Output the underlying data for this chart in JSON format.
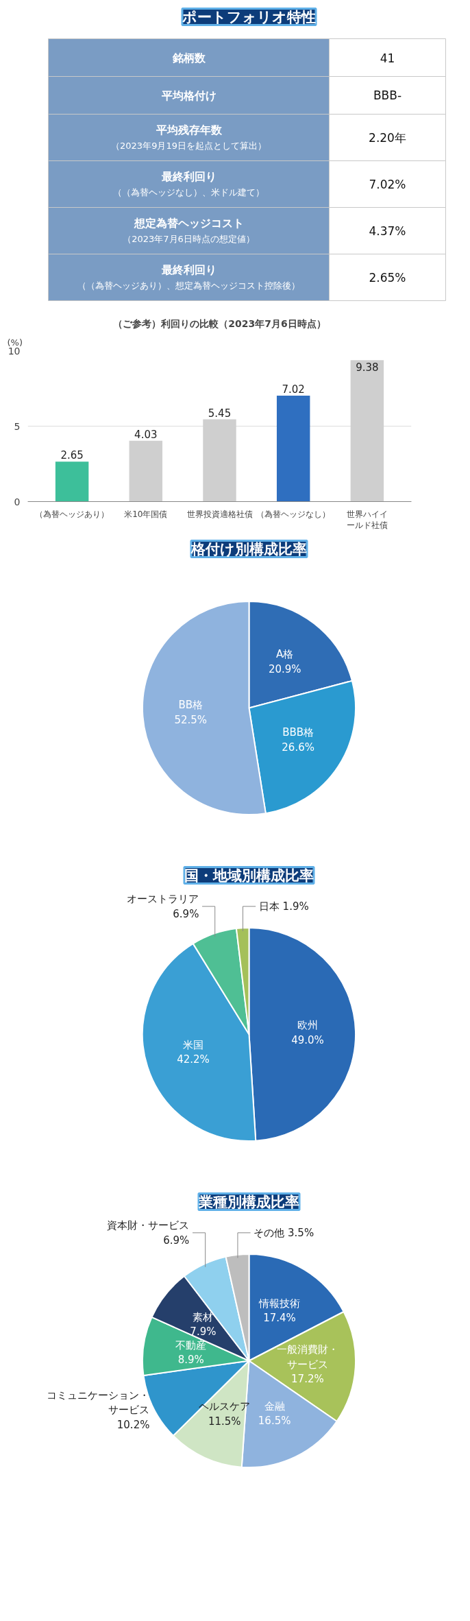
{
  "chart_data": [
    {
      "type": "other",
      "title": "ポートフォリオ特性",
      "categories": [
        "銘柄数",
        "平均格付け",
        "平均残存年数",
        "最終利回り",
        "想定為替ヘッジコスト",
        "最終利回り"
      ],
      "cell_labels": [
        [
          null,
          "41"
        ],
        [
          null,
          "BBB-"
        ],
        [
          "（2023年9月19日を起点として算出）",
          "2.20年"
        ],
        [
          "（（為替ヘッジなし）、米ドル建て）",
          "7.02%"
        ],
        [
          "（2023年7月6日時点の想定値）",
          "4.37%"
        ],
        [
          "（（為替ヘッジあり）、想定為替ヘッジコスト控除後）",
          "2.65%"
        ]
      ]
    },
    {
      "type": "bar",
      "title": "（ご参考）利回りの比較（2023年7月6日時点）",
      "ylabel": "(%)",
      "categories": [
        "（為替ヘッジあり）",
        "米10年国債",
        "世界投資適格社債",
        "（為替ヘッジなし）",
        "世界ハイイールド社債"
      ],
      "values": [
        2.65,
        4.03,
        5.45,
        7.02,
        9.38
      ],
      "colors": [
        "#3dbf9a",
        "#cfcfcf",
        "#cfcfcf",
        "#2f6fc0",
        "#cfcfcf"
      ],
      "ylim": [
        0,
        10
      ],
      "yticks": [
        0,
        5,
        10
      ],
      "grid": "y",
      "data_labels": true
    },
    {
      "type": "pie",
      "title": "格付け別構成比率",
      "categories": [
        "A格",
        "BBB格",
        "BB格"
      ],
      "values": [
        20.9,
        26.6,
        52.5
      ],
      "value_labels": [
        "20.9%",
        "26.6%",
        "52.5%"
      ],
      "colors": [
        "#2f6db5",
        "#2a9ad0",
        "#8fb3de"
      ]
    },
    {
      "type": "pie",
      "title": "国・地域別構成比率",
      "categories": [
        "欧州",
        "米国",
        "オーストラリア",
        "日本"
      ],
      "values": [
        49.0,
        42.2,
        6.9,
        1.9
      ],
      "value_labels": [
        "49.0%",
        "42.2%",
        "6.9%",
        "1.9%"
      ],
      "colors": [
        "#2a6ab5",
        "#3a9fd4",
        "#4fbf94",
        "#a4c05a"
      ]
    },
    {
      "type": "pie",
      "title": "業種別構成比率",
      "categories": [
        "情報技術",
        "一般消費財・サービス",
        "金融",
        "ヘルスケア",
        "コミュニケーション・サービス",
        "不動産",
        "素材",
        "資本財・サービス",
        "その他"
      ],
      "values": [
        17.4,
        17.2,
        16.5,
        11.5,
        10.2,
        8.9,
        7.9,
        6.9,
        3.5
      ],
      "value_labels": [
        "17.4%",
        "17.2%",
        "16.5%",
        "11.5%",
        "10.2%",
        "8.9%",
        "7.9%",
        "6.9%",
        "3.5%"
      ],
      "colors": [
        "#2a6ab5",
        "#a8c25a",
        "#8fb3de",
        "#cfe5c4",
        "#2f95cc",
        "#3fb88d",
        "#253f6b",
        "#8fd0ee",
        "#bdbdbd"
      ]
    }
  ]
}
